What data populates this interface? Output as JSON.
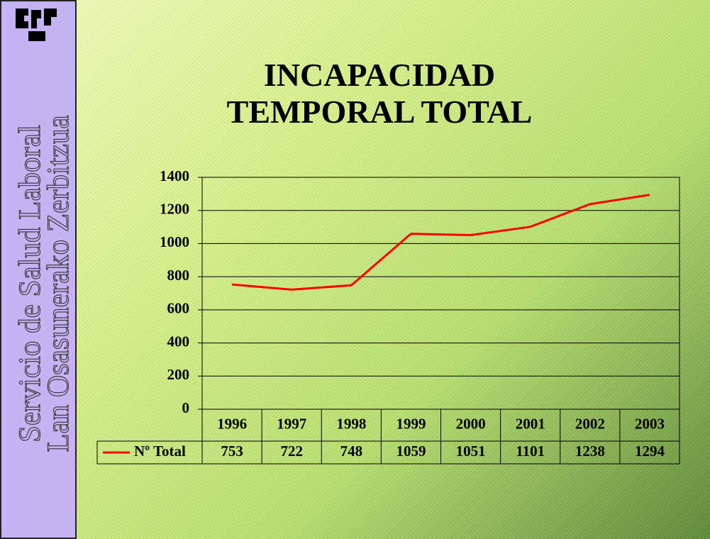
{
  "sidebar": {
    "lines": [
      "Servicio de Salud Laboral",
      "Lan Osasunerako Zerbitzua"
    ]
  },
  "chart_data": {
    "type": "line",
    "title": "INCAPACIDAD TEMPORAL TOTAL",
    "categories": [
      "1996",
      "1997",
      "1998",
      "1999",
      "2000",
      "2001",
      "2002",
      "2003"
    ],
    "series": [
      {
        "name": "Nº Total",
        "color": "#ff0000",
        "values": [
          753,
          722,
          748,
          1059,
          1051,
          1101,
          1238,
          1294
        ]
      }
    ],
    "ylim": [
      0,
      1400
    ],
    "yticks": [
      0,
      200,
      400,
      600,
      800,
      1000,
      1200,
      1400
    ],
    "grid": true,
    "data_table": true
  }
}
